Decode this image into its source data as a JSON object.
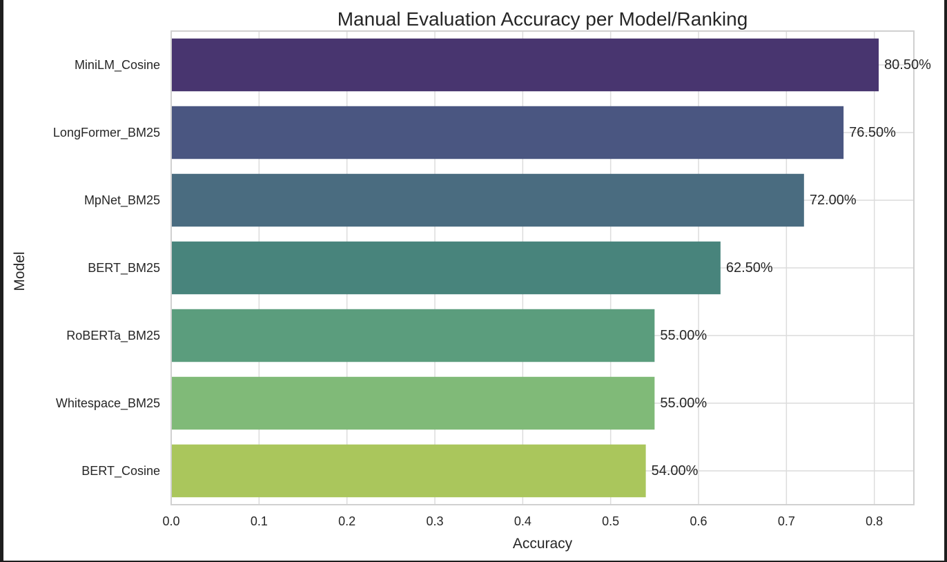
{
  "chart_data": {
    "type": "bar",
    "orientation": "horizontal",
    "title": "Manual Evaluation Accuracy per Model/Ranking",
    "xlabel": "Accuracy",
    "ylabel": "Model",
    "xlim": [
      0,
      0.845
    ],
    "xticks": [
      0.0,
      0.1,
      0.2,
      0.3,
      0.4,
      0.5,
      0.6,
      0.7,
      0.8
    ],
    "xtick_labels": [
      "0.0",
      "0.1",
      "0.2",
      "0.3",
      "0.4",
      "0.5",
      "0.6",
      "0.7",
      "0.8"
    ],
    "grid": true,
    "categories": [
      "MiniLM_Cosine",
      "LongFormer_BM25",
      "MpNet_BM25",
      "BERT_BM25",
      "RoBERTa_BM25",
      "Whitespace_BM25",
      "BERT_Cosine"
    ],
    "values": [
      0.805,
      0.765,
      0.72,
      0.625,
      0.55,
      0.55,
      0.54
    ],
    "value_labels": [
      "80.50%",
      "76.50%",
      "72.00%",
      "62.50%",
      "55.00%",
      "55.00%",
      "54.00%"
    ],
    "colors": [
      "#48356f",
      "#4a5681",
      "#4a6c80",
      "#48847c",
      "#5b9d7d",
      "#80ba78",
      "#aac65c"
    ]
  }
}
